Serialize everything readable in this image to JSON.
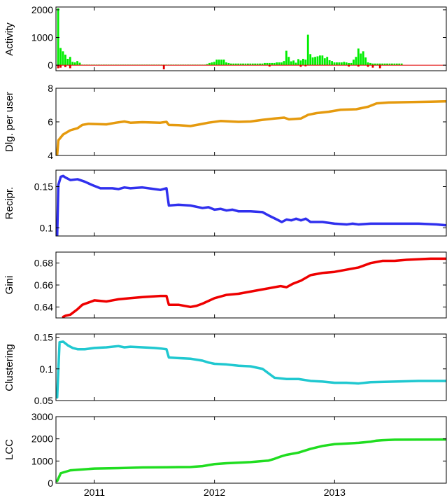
{
  "chart_data": [
    {
      "id": "activity",
      "type": "bar",
      "ylabel": "Activity",
      "ylim": [
        -200,
        2100
      ],
      "yticks": [
        0,
        1000,
        2000
      ],
      "xlim": [
        2010.68,
        2013.93
      ],
      "x_start": 2010.7,
      "x_step": 0.02,
      "series": [
        {
          "color": "#00ee00",
          "values": [
            2050,
            620,
            500,
            380,
            230,
            300,
            120,
            100,
            150,
            90,
            20,
            20,
            20,
            20,
            20,
            20,
            20,
            20,
            20,
            20,
            20,
            20,
            20,
            20,
            20,
            20,
            20,
            20,
            20,
            20,
            20,
            20,
            20,
            20,
            20,
            20,
            20,
            20,
            20,
            20,
            20,
            20,
            20,
            20,
            20,
            20,
            20,
            20,
            20,
            20,
            20,
            20,
            20,
            20,
            20,
            20,
            20,
            20,
            20,
            20,
            20,
            20,
            40,
            80,
            100,
            120,
            200,
            200,
            200,
            200,
            100,
            80,
            60,
            60,
            60,
            60,
            60,
            60,
            60,
            60,
            60,
            60,
            60,
            60,
            60,
            60,
            80,
            80,
            80,
            80,
            80,
            100,
            100,
            100,
            150,
            520,
            300,
            140,
            170,
            90,
            220,
            170,
            230,
            200,
            1100,
            400,
            280,
            300,
            320,
            350,
            350,
            250,
            300,
            180,
            150,
            100,
            100,
            100,
            100,
            120,
            100,
            80,
            80,
            200,
            300,
            600,
            420,
            500,
            280,
            100,
            80,
            60,
            60,
            60,
            60,
            60,
            60,
            60,
            60,
            60,
            60,
            60,
            60,
            60
          ]
        },
        {
          "color": "#e00000",
          "sparse_values": [
            [
              2010.7,
              -110
            ],
            [
              2010.72,
              -90
            ],
            [
              2010.76,
              -70
            ],
            [
              2010.8,
              -110
            ],
            [
              2011.58,
              -150
            ],
            [
              2012.46,
              -50
            ],
            [
              2012.72,
              -60
            ],
            [
              2012.76,
              -40
            ],
            [
              2013.12,
              -50
            ],
            [
              2013.2,
              -50
            ],
            [
              2013.28,
              -60
            ],
            [
              2013.32,
              -90
            ],
            [
              2013.38,
              -110
            ]
          ]
        }
      ]
    },
    {
      "id": "dlg",
      "type": "line",
      "ylabel": "Dlg. per user",
      "ylim": [
        4,
        8
      ],
      "yticks": [
        4,
        6,
        8
      ],
      "xlim": [
        2010.68,
        2013.93
      ],
      "color": "#e59a0e",
      "points": [
        [
          2010.69,
          4.05
        ],
        [
          2010.7,
          4.9
        ],
        [
          2010.74,
          5.25
        ],
        [
          2010.8,
          5.5
        ],
        [
          2010.86,
          5.62
        ],
        [
          2010.9,
          5.82
        ],
        [
          2010.95,
          5.88
        ],
        [
          2011.1,
          5.85
        ],
        [
          2011.18,
          5.95
        ],
        [
          2011.25,
          6.02
        ],
        [
          2011.3,
          5.95
        ],
        [
          2011.4,
          5.98
        ],
        [
          2011.55,
          5.95
        ],
        [
          2011.6,
          6.0
        ],
        [
          2011.62,
          5.82
        ],
        [
          2011.7,
          5.8
        ],
        [
          2011.8,
          5.75
        ],
        [
          2011.9,
          5.88
        ],
        [
          2011.95,
          5.95
        ],
        [
          2012.05,
          6.05
        ],
        [
          2012.2,
          6.0
        ],
        [
          2012.3,
          6.02
        ],
        [
          2012.4,
          6.12
        ],
        [
          2012.5,
          6.2
        ],
        [
          2012.58,
          6.25
        ],
        [
          2012.62,
          6.15
        ],
        [
          2012.72,
          6.2
        ],
        [
          2012.78,
          6.42
        ],
        [
          2012.85,
          6.52
        ],
        [
          2012.95,
          6.6
        ],
        [
          2013.05,
          6.72
        ],
        [
          2013.18,
          6.75
        ],
        [
          2013.28,
          6.9
        ],
        [
          2013.35,
          7.1
        ],
        [
          2013.45,
          7.15
        ],
        [
          2013.6,
          7.17
        ],
        [
          2013.8,
          7.2
        ],
        [
          2013.93,
          7.22
        ]
      ]
    },
    {
      "id": "recipr",
      "type": "line",
      "ylabel": "Recipr.",
      "ylim": [
        0.09,
        0.17
      ],
      "yticks": [
        0.1,
        0.15
      ],
      "xlim": [
        2010.68,
        2013.93
      ],
      "color": "#3030ee",
      "points": [
        [
          2010.69,
          0.09
        ],
        [
          2010.7,
          0.152
        ],
        [
          2010.72,
          0.162
        ],
        [
          2010.74,
          0.163
        ],
        [
          2010.76,
          0.161
        ],
        [
          2010.8,
          0.158
        ],
        [
          2010.86,
          0.159
        ],
        [
          2010.92,
          0.156
        ],
        [
          2010.98,
          0.152
        ],
        [
          2011.05,
          0.148
        ],
        [
          2011.15,
          0.148
        ],
        [
          2011.2,
          0.147
        ],
        [
          2011.25,
          0.149
        ],
        [
          2011.3,
          0.148
        ],
        [
          2011.4,
          0.149
        ],
        [
          2011.5,
          0.147
        ],
        [
          2011.55,
          0.146
        ],
        [
          2011.6,
          0.148
        ],
        [
          2011.62,
          0.127
        ],
        [
          2011.7,
          0.128
        ],
        [
          2011.8,
          0.127
        ],
        [
          2011.9,
          0.124
        ],
        [
          2011.95,
          0.125
        ],
        [
          2012.0,
          0.122
        ],
        [
          2012.05,
          0.123
        ],
        [
          2012.1,
          0.121
        ],
        [
          2012.15,
          0.122
        ],
        [
          2012.2,
          0.12
        ],
        [
          2012.3,
          0.12
        ],
        [
          2012.4,
          0.119
        ],
        [
          2012.45,
          0.115
        ],
        [
          2012.52,
          0.11
        ],
        [
          2012.56,
          0.107
        ],
        [
          2012.6,
          0.11
        ],
        [
          2012.64,
          0.109
        ],
        [
          2012.68,
          0.111
        ],
        [
          2012.72,
          0.109
        ],
        [
          2012.76,
          0.111
        ],
        [
          2012.8,
          0.107
        ],
        [
          2012.9,
          0.107
        ],
        [
          2013.0,
          0.105
        ],
        [
          2013.1,
          0.104
        ],
        [
          2013.15,
          0.105
        ],
        [
          2013.2,
          0.104
        ],
        [
          2013.3,
          0.105
        ],
        [
          2013.5,
          0.105
        ],
        [
          2013.7,
          0.105
        ],
        [
          2013.85,
          0.104
        ],
        [
          2013.93,
          0.103
        ]
      ]
    },
    {
      "id": "gini",
      "type": "line",
      "ylabel": "Gini",
      "ylim": [
        0.63,
        0.69
      ],
      "yticks": [
        0.64,
        0.66,
        0.68
      ],
      "xlim": [
        2010.68,
        2013.93
      ],
      "color": "#ee0000",
      "points": [
        [
          2010.74,
          0.631
        ],
        [
          2010.76,
          0.632
        ],
        [
          2010.8,
          0.633
        ],
        [
          2010.86,
          0.638
        ],
        [
          2010.9,
          0.642
        ],
        [
          2010.95,
          0.644
        ],
        [
          2011.0,
          0.646
        ],
        [
          2011.1,
          0.645
        ],
        [
          2011.15,
          0.646
        ],
        [
          2011.2,
          0.647
        ],
        [
          2011.3,
          0.648
        ],
        [
          2011.4,
          0.649
        ],
        [
          2011.55,
          0.65
        ],
        [
          2011.6,
          0.65
        ],
        [
          2011.62,
          0.642
        ],
        [
          2011.7,
          0.642
        ],
        [
          2011.8,
          0.64
        ],
        [
          2011.85,
          0.641
        ],
        [
          2011.9,
          0.643
        ],
        [
          2012.0,
          0.648
        ],
        [
          2012.1,
          0.651
        ],
        [
          2012.2,
          0.652
        ],
        [
          2012.3,
          0.654
        ],
        [
          2012.4,
          0.656
        ],
        [
          2012.5,
          0.658
        ],
        [
          2012.55,
          0.659
        ],
        [
          2012.6,
          0.658
        ],
        [
          2012.65,
          0.661
        ],
        [
          2012.72,
          0.664
        ],
        [
          2012.8,
          0.669
        ],
        [
          2012.9,
          0.671
        ],
        [
          2013.0,
          0.672
        ],
        [
          2013.1,
          0.674
        ],
        [
          2013.2,
          0.676
        ],
        [
          2013.3,
          0.68
        ],
        [
          2013.4,
          0.682
        ],
        [
          2013.5,
          0.682
        ],
        [
          2013.6,
          0.683
        ],
        [
          2013.8,
          0.684
        ],
        [
          2013.93,
          0.684
        ]
      ]
    },
    {
      "id": "clustering",
      "type": "line",
      "ylabel": "Clustering",
      "ylim": [
        0.05,
        0.155
      ],
      "yticks": [
        0.05,
        0.1,
        0.15
      ],
      "xlim": [
        2010.68,
        2013.93
      ],
      "color": "#20c8d0",
      "points": [
        [
          2010.69,
          0.055
        ],
        [
          2010.71,
          0.142
        ],
        [
          2010.74,
          0.143
        ],
        [
          2010.78,
          0.137
        ],
        [
          2010.82,
          0.133
        ],
        [
          2010.86,
          0.131
        ],
        [
          2010.92,
          0.131
        ],
        [
          2011.0,
          0.133
        ],
        [
          2011.1,
          0.134
        ],
        [
          2011.2,
          0.136
        ],
        [
          2011.25,
          0.134
        ],
        [
          2011.3,
          0.135
        ],
        [
          2011.4,
          0.134
        ],
        [
          2011.5,
          0.133
        ],
        [
          2011.56,
          0.132
        ],
        [
          2011.6,
          0.131
        ],
        [
          2011.62,
          0.118
        ],
        [
          2011.7,
          0.117
        ],
        [
          2011.8,
          0.116
        ],
        [
          2011.9,
          0.113
        ],
        [
          2011.95,
          0.11
        ],
        [
          2012.0,
          0.108
        ],
        [
          2012.1,
          0.107
        ],
        [
          2012.2,
          0.105
        ],
        [
          2012.3,
          0.104
        ],
        [
          2012.4,
          0.1
        ],
        [
          2012.45,
          0.093
        ],
        [
          2012.5,
          0.086
        ],
        [
          2012.6,
          0.084
        ],
        [
          2012.7,
          0.084
        ],
        [
          2012.8,
          0.081
        ],
        [
          2012.9,
          0.08
        ],
        [
          2013.0,
          0.078
        ],
        [
          2013.1,
          0.078
        ],
        [
          2013.2,
          0.077
        ],
        [
          2013.3,
          0.079
        ],
        [
          2013.5,
          0.08
        ],
        [
          2013.7,
          0.081
        ],
        [
          2013.93,
          0.081
        ]
      ]
    },
    {
      "id": "lcc",
      "type": "line",
      "ylabel": "LCC",
      "ylim": [
        0,
        3000
      ],
      "yticks": [
        0,
        1000,
        2000,
        3000
      ],
      "xlim": [
        2010.68,
        2013.93
      ],
      "color": "#20dd20",
      "points": [
        [
          2010.69,
          100
        ],
        [
          2010.72,
          450
        ],
        [
          2010.8,
          580
        ],
        [
          2010.9,
          620
        ],
        [
          2011.0,
          660
        ],
        [
          2011.2,
          680
        ],
        [
          2011.4,
          710
        ],
        [
          2011.6,
          720
        ],
        [
          2011.8,
          730
        ],
        [
          2011.9,
          770
        ],
        [
          2012.0,
          860
        ],
        [
          2012.1,
          900
        ],
        [
          2012.3,
          950
        ],
        [
          2012.45,
          1020
        ],
        [
          2012.5,
          1100
        ],
        [
          2012.55,
          1200
        ],
        [
          2012.6,
          1280
        ],
        [
          2012.7,
          1380
        ],
        [
          2012.8,
          1550
        ],
        [
          2012.9,
          1680
        ],
        [
          2013.0,
          1760
        ],
        [
          2013.1,
          1790
        ],
        [
          2013.2,
          1820
        ],
        [
          2013.3,
          1870
        ],
        [
          2013.35,
          1920
        ],
        [
          2013.4,
          1940
        ],
        [
          2013.5,
          1960
        ],
        [
          2013.7,
          1965
        ],
        [
          2013.93,
          1970
        ]
      ],
      "xticks": [
        2011,
        2012,
        2013
      ],
      "xtick_labels": [
        "2011",
        "2012",
        "2013"
      ]
    }
  ]
}
